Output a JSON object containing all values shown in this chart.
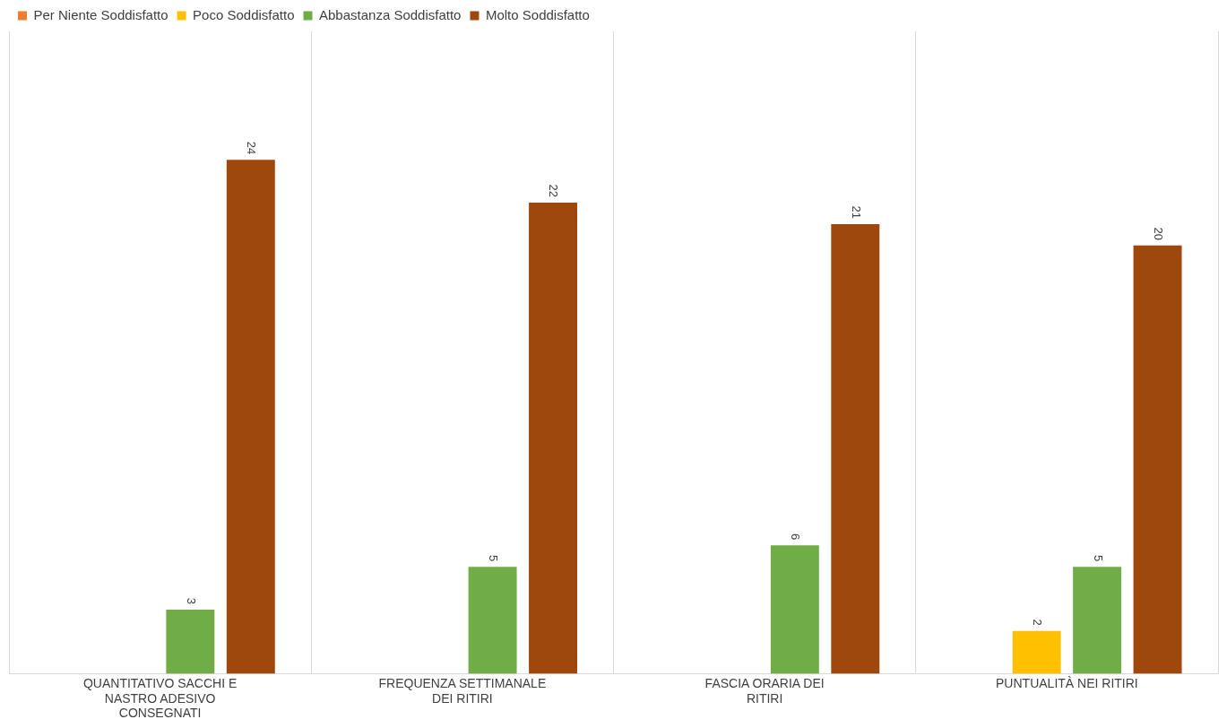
{
  "chart_data": {
    "type": "bar",
    "categories": [
      "QUANTITATIVO SACCHI E NASTRO ADESIVO CONSEGNATI",
      "FREQUENZA SETTIMANALE DEI RITIRI",
      "FASCIA ORARIA DEI RITIRI",
      "PUNTUALITÀ NEI RITIRI"
    ],
    "series": [
      {
        "name": "Per Niente Soddisfatto",
        "color": "#ed7d31",
        "values": [
          null,
          null,
          null,
          null
        ]
      },
      {
        "name": "Poco Soddisfatto",
        "color": "#ffc000",
        "values": [
          null,
          null,
          null,
          2
        ]
      },
      {
        "name": "Abbastanza Soddisfatto",
        "color": "#70ad47",
        "values": [
          3,
          5,
          6,
          5
        ]
      },
      {
        "name": "Molto Soddisfatto",
        "color": "#9e480e",
        "values": [
          24,
          22,
          21,
          20
        ]
      }
    ],
    "data_labels": true,
    "grid": "x",
    "legend": "top"
  }
}
